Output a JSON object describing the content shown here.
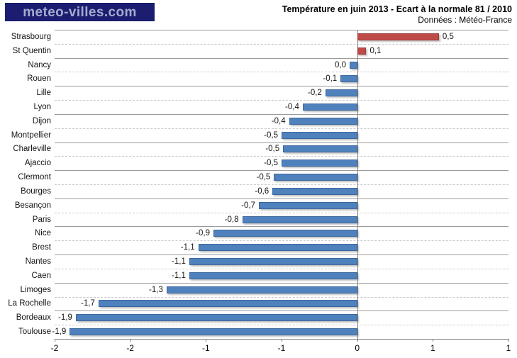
{
  "logo": {
    "text": "meteo-villes.com",
    "bg_color": "#1c1c70",
    "text_color": "#a5abce"
  },
  "header": {
    "title": "Température en juin 2013 - Ecart à la normale 81 / 2010",
    "subtitle": "Données : Météo-France"
  },
  "chart_data": {
    "type": "bar",
    "orientation": "horizontal",
    "title": "Température en juin 2013 - Ecart à la normale 81 / 2010",
    "source": "Données : Météo-France",
    "categories": [
      "Strasbourg",
      "St Quentin",
      "Nancy",
      "Rouen",
      "Lille",
      "Lyon",
      "Dijon",
      "Montpellier",
      "Charleville",
      "Ajaccio",
      "Clermont",
      "Bourges",
      "Besançon",
      "Paris",
      "Nice",
      "Brest",
      "Nantes",
      "Caen",
      "Limoges",
      "La Rochelle",
      "Bordeaux",
      "Toulouse"
    ],
    "values": [
      0.5,
      0.1,
      0.0,
      -0.1,
      -0.2,
      -0.4,
      -0.4,
      -0.5,
      -0.5,
      -0.5,
      -0.5,
      -0.6,
      -0.7,
      -0.8,
      -0.9,
      -1.1,
      -1.1,
      -1.1,
      -1.3,
      -1.7,
      -1.9,
      -1.9
    ],
    "value_labels": [
      "0,5",
      "0,1",
      "0,0",
      "-0,1",
      "-0,2",
      "-0,4",
      "-0,4",
      "-0,5",
      "-0,5",
      "-0,5",
      "-0,5",
      "-0,6",
      "-0,7",
      "-0,8",
      "-0,9",
      "-1,1",
      "-1,1",
      "-1,1",
      "-1,3",
      "-1,7",
      "-1,9",
      "-1,9"
    ],
    "bar_values": [
      0.54,
      0.06,
      -0.05,
      -0.11,
      -0.21,
      -0.36,
      -0.45,
      -0.5,
      -0.49,
      -0.5,
      -0.55,
      -0.56,
      -0.65,
      -0.76,
      -0.95,
      -1.05,
      -1.11,
      -1.11,
      -1.26,
      -1.71,
      -1.86,
      -1.9
    ],
    "xlim": [
      -2,
      1
    ],
    "xticks": [
      -2,
      -1.5,
      -1,
      -0.5,
      0,
      0.5,
      1
    ],
    "xtick_labels": [
      "-2",
      "-2",
      "-1",
      "-1",
      "0",
      "1",
      "1"
    ],
    "xlabel": "",
    "ylabel": "",
    "legend": "none",
    "grid": "horizontal category lines, alternating solid/dashed; vertical zero axis line",
    "colors": {
      "positive_bar": "#BE4B48",
      "negative_bar": "#4F81BD",
      "gridline_major": "#9b9b9b",
      "gridline_minor": "#c9c9c9",
      "axis": "#7f7f7f"
    }
  }
}
